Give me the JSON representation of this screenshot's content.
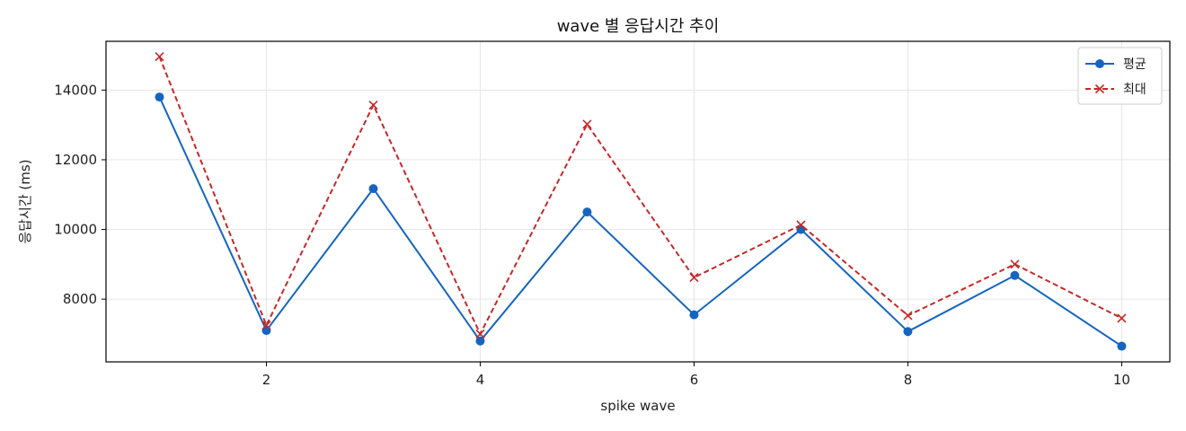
{
  "chart_data": {
    "type": "line",
    "title": "wave 별 응답시간 추이",
    "xlabel": "spike wave",
    "ylabel": "응답시간 (ms)",
    "x": [
      1,
      2,
      3,
      4,
      5,
      6,
      7,
      8,
      9,
      10
    ],
    "xticks": [
      2,
      4,
      6,
      8,
      10
    ],
    "yticks": [
      8000,
      10000,
      12000,
      14000
    ],
    "xlim": [
      0.5,
      10.45
    ],
    "ylim": [
      6200,
      15400
    ],
    "grid": true,
    "legend_position": "top-right",
    "series": [
      {
        "name": "평균",
        "color": "#1565c0",
        "marker": "circle",
        "line_style": "solid",
        "values": [
          13800,
          7100,
          11170,
          6800,
          10500,
          7550,
          10000,
          7070,
          8680,
          6650
        ]
      },
      {
        "name": "최대",
        "color": "#c62828",
        "marker": "x",
        "line_style": "dashed",
        "values": [
          14960,
          7250,
          13570,
          7000,
          13020,
          8620,
          10130,
          7530,
          9000,
          7450
        ]
      }
    ]
  }
}
